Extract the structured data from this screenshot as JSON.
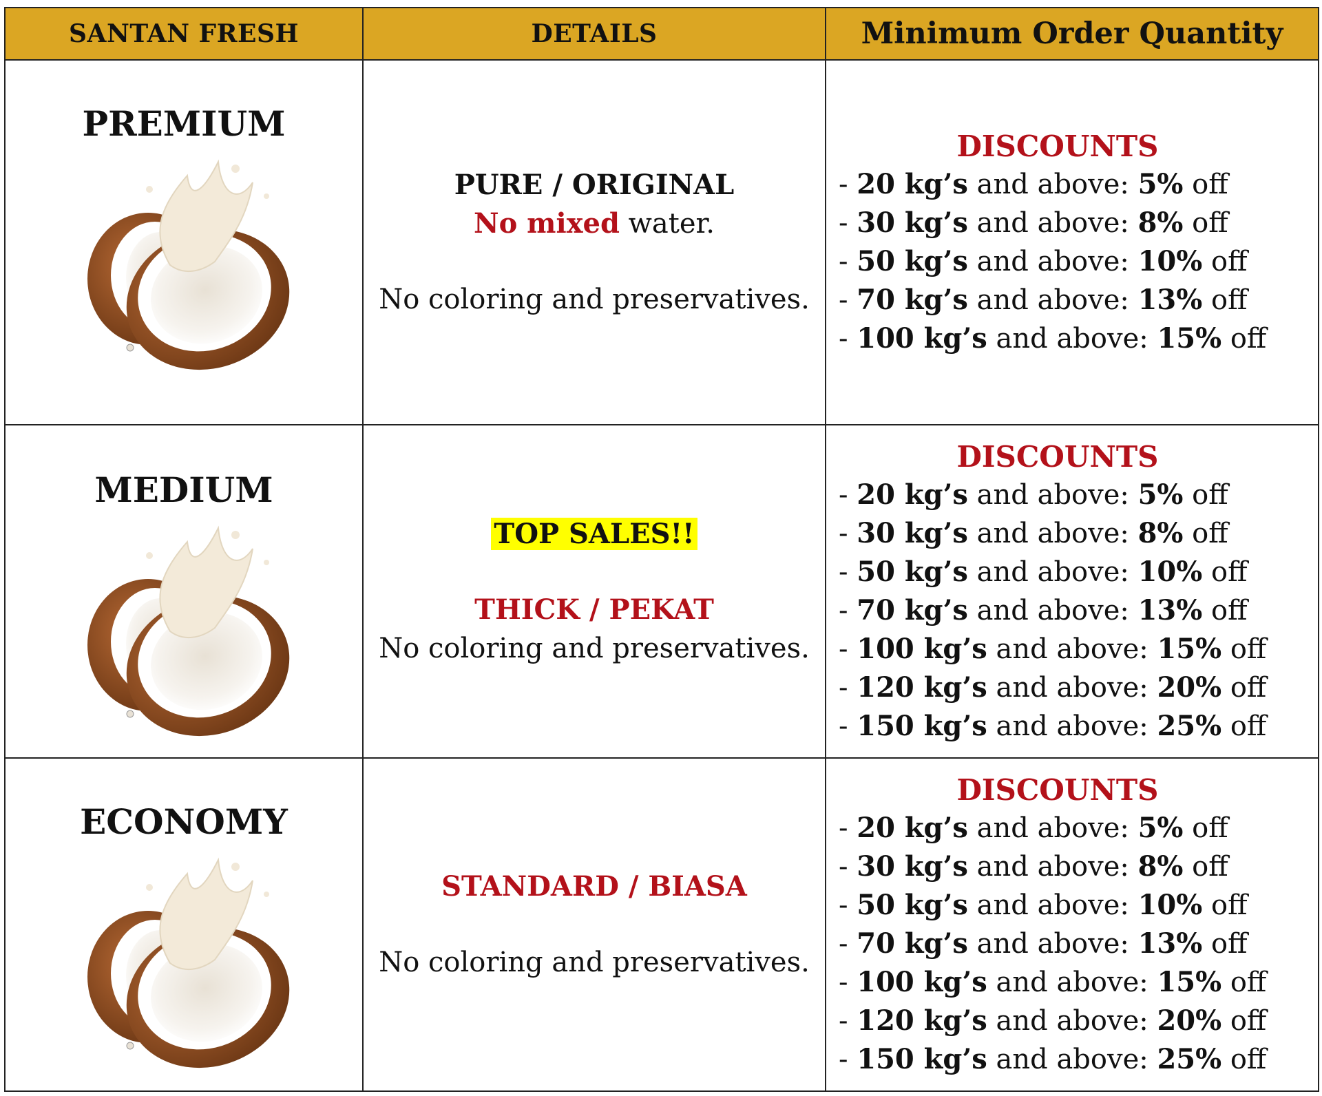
{
  "header": {
    "col1": "SANTAN FRESH",
    "col2": "DETAILS",
    "col3": "Minimum Order Quantity"
  },
  "tiers": [
    {
      "name": "PREMIUM",
      "details": {
        "headline": "PURE / ORIGINAL",
        "red_part": "No mixed",
        "rest_part": " water.",
        "note": "No coloring and preservatives."
      },
      "discounts_title": "DISCOUNTS",
      "discounts": [
        {
          "qty": "20 kg’s",
          "mid": " and above: ",
          "pct": "5%",
          "tail": " off"
        },
        {
          "qty": "30 kg’s",
          "mid": " and above: ",
          "pct": "8%",
          "tail": " off"
        },
        {
          "qty": "50 kg’s",
          "mid": " and above: ",
          "pct": "10%",
          "tail": " off"
        },
        {
          "qty": "70 kg’s",
          "mid": " and above: ",
          "pct": "13%",
          "tail": " off"
        },
        {
          "qty": "100 kg’s",
          "mid": " and above: ",
          "pct": "15%",
          "tail": " off"
        }
      ]
    },
    {
      "name": "MEDIUM",
      "details": {
        "badge": "TOP SALES!!",
        "headline": "THICK / PEKAT",
        "note": "No coloring and preservatives."
      },
      "discounts_title": "DISCOUNTS",
      "discounts": [
        {
          "qty": "20 kg’s",
          "mid": " and above: ",
          "pct": "5%",
          "tail": " off"
        },
        {
          "qty": "30 kg’s",
          "mid": " and above: ",
          "pct": "8%",
          "tail": " off"
        },
        {
          "qty": "50 kg’s",
          "mid": " and above: ",
          "pct": "10%",
          "tail": " off"
        },
        {
          "qty": "70 kg’s",
          "mid": " and above: ",
          "pct": "13%",
          "tail": " off"
        },
        {
          "qty": "100 kg’s",
          "mid": " and above: ",
          "pct": "15%",
          "tail": " off"
        },
        {
          "qty": "120 kg’s",
          "mid": " and above: ",
          "pct": "20%",
          "tail": " off"
        },
        {
          "qty": "150 kg’s",
          "mid": " and above: ",
          "pct": "25%",
          "tail": " off"
        }
      ]
    },
    {
      "name": "ECONOMY",
      "details": {
        "headline": "STANDARD / BIASA",
        "note": "No coloring and preservatives."
      },
      "discounts_title": "DISCOUNTS",
      "discounts": [
        {
          "qty": "20 kg’s",
          "mid": " and above: ",
          "pct": "5%",
          "tail": " off"
        },
        {
          "qty": "30 kg’s",
          "mid": " and above: ",
          "pct": "8%",
          "tail": " off"
        },
        {
          "qty": "50 kg’s",
          "mid": " and above: ",
          "pct": "10%",
          "tail": " off"
        },
        {
          "qty": "70 kg’s",
          "mid": " and above: ",
          "pct": "13%",
          "tail": " off"
        },
        {
          "qty": "100 kg’s",
          "mid": " and above: ",
          "pct": "15%",
          "tail": " off"
        },
        {
          "qty": "120 kg’s",
          "mid": " and above: ",
          "pct": "20%",
          "tail": " off"
        },
        {
          "qty": "150 kg’s",
          "mid": " and above: ",
          "pct": "25%",
          "tail": " off"
        }
      ]
    }
  ],
  "colors": {
    "header_bg": "#dba623",
    "accent_red": "#b3111a",
    "highlight": "#ffff00"
  },
  "icons": {
    "product_image": "coconut-milk-splash-icon"
  }
}
